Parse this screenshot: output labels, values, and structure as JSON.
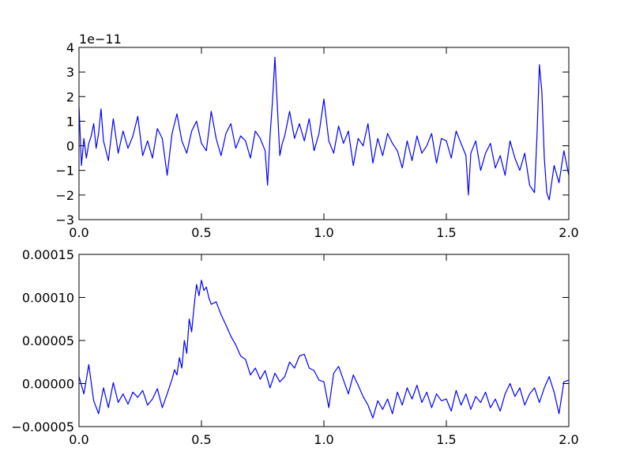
{
  "chart_data": [
    {
      "type": "line",
      "title": "",
      "xlabel": "",
      "ylabel": "",
      "xlim": [
        0.0,
        2.0
      ],
      "ylim": [
        -3,
        4
      ],
      "offset_text": "1e−11",
      "xticks": [
        0.0,
        0.5,
        1.0,
        1.5,
        2.0
      ],
      "xtick_labels": [
        "0.0",
        "0.5",
        "1.0",
        "1.5",
        "2.0"
      ],
      "yticks": [
        -3,
        -2,
        -1,
        0,
        1,
        2,
        3,
        4
      ],
      "ytick_labels": [
        "−3",
        "−2",
        "−1",
        "0",
        "1",
        "2",
        "3",
        "4"
      ],
      "grid": false,
      "series": [
        {
          "color": "#0000ff",
          "x": [
            0.0,
            0.01,
            0.02,
            0.03,
            0.04,
            0.05,
            0.06,
            0.07,
            0.08,
            0.09,
            0.1,
            0.12,
            0.14,
            0.16,
            0.18,
            0.2,
            0.22,
            0.24,
            0.26,
            0.28,
            0.3,
            0.32,
            0.34,
            0.36,
            0.38,
            0.4,
            0.42,
            0.44,
            0.46,
            0.48,
            0.5,
            0.52,
            0.54,
            0.56,
            0.58,
            0.6,
            0.62,
            0.64,
            0.66,
            0.68,
            0.7,
            0.72,
            0.74,
            0.76,
            0.77,
            0.78,
            0.79,
            0.8,
            0.81,
            0.82,
            0.83,
            0.84,
            0.86,
            0.88,
            0.9,
            0.92,
            0.94,
            0.96,
            0.98,
            1.0,
            1.02,
            1.04,
            1.06,
            1.08,
            1.1,
            1.12,
            1.14,
            1.16,
            1.18,
            1.2,
            1.22,
            1.24,
            1.26,
            1.28,
            1.3,
            1.32,
            1.34,
            1.36,
            1.38,
            1.4,
            1.42,
            1.44,
            1.46,
            1.48,
            1.5,
            1.52,
            1.54,
            1.56,
            1.58,
            1.59,
            1.6,
            1.62,
            1.64,
            1.66,
            1.68,
            1.7,
            1.72,
            1.74,
            1.76,
            1.78,
            1.8,
            1.82,
            1.84,
            1.86,
            1.87,
            1.88,
            1.89,
            1.9,
            1.91,
            1.92,
            1.94,
            1.96,
            1.98,
            2.0
          ],
          "values": [
            1.6,
            -0.8,
            0.3,
            -0.5,
            0.1,
            0.4,
            0.9,
            -0.1,
            0.5,
            1.5,
            0.2,
            -0.6,
            1.1,
            -0.3,
            0.6,
            -0.1,
            0.4,
            1.2,
            -0.4,
            0.2,
            -0.5,
            0.7,
            0.3,
            -1.2,
            0.5,
            1.3,
            0.2,
            -0.3,
            0.6,
            1.0,
            0.1,
            -0.2,
            1.4,
            0.3,
            -0.4,
            0.5,
            0.9,
            -0.1,
            0.4,
            0.2,
            -0.5,
            0.6,
            0.3,
            -0.2,
            -1.6,
            0.4,
            1.8,
            3.6,
            1.6,
            -0.4,
            0.1,
            0.4,
            1.4,
            0.3,
            0.9,
            0.2,
            1.1,
            -0.2,
            0.5,
            1.9,
            0.2,
            -0.3,
            0.8,
            0.1,
            0.6,
            -0.8,
            0.3,
            0.0,
            0.9,
            -0.7,
            0.3,
            -0.4,
            0.5,
            0.1,
            -0.2,
            -0.9,
            0.2,
            -0.6,
            0.4,
            -0.3,
            0.0,
            0.5,
            -0.7,
            0.3,
            0.2,
            -0.5,
            0.6,
            0.1,
            -0.4,
            -2.0,
            -0.3,
            0.2,
            -1.0,
            -0.3,
            0.1,
            -0.9,
            -0.4,
            -1.2,
            0.2,
            -0.5,
            -1.0,
            -0.3,
            -1.6,
            -1.9,
            0.4,
            3.3,
            2.2,
            -0.5,
            -1.9,
            -2.2,
            -0.8,
            -1.5,
            -0.2,
            -1.2
          ]
        }
      ]
    },
    {
      "type": "line",
      "title": "",
      "xlabel": "",
      "ylabel": "",
      "xlim": [
        0.0,
        2.0
      ],
      "ylim": [
        -5e-05,
        0.00015
      ],
      "xticks": [
        0.0,
        0.5,
        1.0,
        1.5,
        2.0
      ],
      "xtick_labels": [
        "0.0",
        "0.5",
        "1.0",
        "1.5",
        "2.0"
      ],
      "yticks": [
        -5e-05,
        0.0,
        5e-05,
        0.0001,
        0.00015
      ],
      "ytick_labels": [
        "−0.00005",
        "0.00000",
        "0.00005",
        "0.00010",
        "0.00015"
      ],
      "grid": false,
      "series": [
        {
          "color": "#0000ff",
          "x": [
            0.0,
            0.02,
            0.04,
            0.06,
            0.08,
            0.1,
            0.12,
            0.14,
            0.16,
            0.18,
            0.2,
            0.22,
            0.24,
            0.26,
            0.28,
            0.3,
            0.32,
            0.34,
            0.36,
            0.38,
            0.39,
            0.4,
            0.41,
            0.42,
            0.43,
            0.44,
            0.45,
            0.46,
            0.47,
            0.48,
            0.49,
            0.5,
            0.51,
            0.52,
            0.53,
            0.54,
            0.56,
            0.58,
            0.6,
            0.62,
            0.64,
            0.66,
            0.68,
            0.7,
            0.72,
            0.74,
            0.76,
            0.78,
            0.8,
            0.82,
            0.84,
            0.86,
            0.88,
            0.9,
            0.92,
            0.94,
            0.96,
            0.98,
            1.0,
            1.02,
            1.04,
            1.06,
            1.08,
            1.1,
            1.12,
            1.14,
            1.16,
            1.18,
            1.2,
            1.22,
            1.24,
            1.26,
            1.28,
            1.3,
            1.32,
            1.34,
            1.36,
            1.38,
            1.4,
            1.42,
            1.44,
            1.46,
            1.48,
            1.5,
            1.52,
            1.54,
            1.56,
            1.58,
            1.6,
            1.62,
            1.64,
            1.66,
            1.68,
            1.7,
            1.72,
            1.74,
            1.76,
            1.78,
            1.8,
            1.82,
            1.84,
            1.86,
            1.88,
            1.9,
            1.92,
            1.94,
            1.96,
            1.98,
            2.0
          ],
          "values": [
            8e-06,
            -1.2e-05,
            2.2e-05,
            -2e-05,
            -3.5e-05,
            -5e-06,
            -2.8e-05,
            1e-06,
            -2.2e-05,
            -1.2e-05,
            -2.4e-05,
            -1e-05,
            -1.6e-05,
            -8e-06,
            -2.5e-05,
            -1.8e-05,
            -6e-06,
            -2.8e-05,
            -1.2e-05,
            5e-06,
            1.6e-05,
            1e-05,
            3e-05,
            1.8e-05,
            5e-05,
            3.5e-05,
            7.5e-05,
            6e-05,
            9e-05,
            0.000115,
            0.000102,
            0.00012,
            0.000108,
            0.000112,
            0.0001,
            9.2e-05,
            9.5e-05,
            8e-05,
            6.8e-05,
            5.5e-05,
            4.5e-05,
            3.2e-05,
            2.8e-05,
            1e-05,
            1.8e-05,
            5e-06,
            1.5e-05,
            -5e-06,
            1.2e-05,
            2e-06,
            8e-06,
            2.5e-05,
            1.8e-05,
            3.2e-05,
            3.4e-05,
            1.8e-05,
            1.5e-05,
            4e-06,
            2e-06,
            -2.8e-05,
            1.2e-05,
            2e-05,
            4e-06,
            -1.2e-05,
            1e-05,
            -2e-06,
            -1.5e-05,
            -2.5e-05,
            -4e-05,
            -2e-05,
            -3e-05,
            -1.8e-05,
            -3.5e-05,
            -1e-05,
            -2.5e-05,
            -5e-06,
            -1.8e-05,
            -2e-06,
            -2.2e-05,
            -1e-05,
            -2.8e-05,
            -1.2e-05,
            -2e-05,
            -1.8e-05,
            -3.2e-05,
            -8e-06,
            -2.5e-05,
            -1.2e-05,
            -3e-05,
            -1.5e-05,
            -2.2e-05,
            -1e-05,
            -2.8e-05,
            -1.8e-05,
            -3.2e-05,
            -1.2e-05,
            0.0,
            -1.5e-05,
            -5e-06,
            -2.5e-05,
            -1.2e-05,
            -5e-06,
            -2.2e-05,
            -5e-06,
            8e-06,
            -1e-05,
            -3.5e-05,
            2e-06,
            4e-06
          ]
        }
      ]
    }
  ]
}
